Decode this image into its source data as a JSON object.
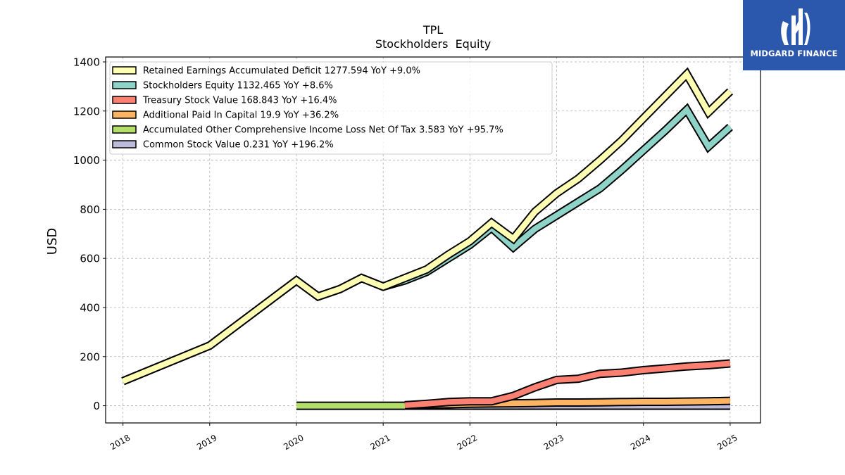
{
  "chart_data": {
    "type": "line",
    "title": "TPL",
    "subtitle": "Stockholders  Equity",
    "ylabel": "USD",
    "xlabel": "",
    "xlim": [
      2017.8,
      2025.35
    ],
    "ylim": [
      -70,
      1420
    ],
    "x_ticks": [
      2018,
      2019,
      2020,
      2021,
      2022,
      2023,
      2024,
      2025
    ],
    "x_tick_labels": [
      "2018",
      "2019",
      "2020",
      "2021",
      "2022",
      "2023",
      "2024",
      "2025"
    ],
    "y_ticks": [
      0,
      200,
      400,
      600,
      800,
      1000,
      1200,
      1400
    ],
    "y_tick_labels": [
      "0",
      "200",
      "400",
      "600",
      "800",
      "1000",
      "1200",
      "1400"
    ],
    "grid": true,
    "legend_position": "top-left",
    "series": [
      {
        "name": "Retained Earnings Accumulated Deficit  1277.594 YoY +9.0%",
        "color": "#ffffb3",
        "x": [
          2018.0,
          2019.0,
          2020.0,
          2020.25,
          2020.5,
          2020.75,
          2021.0,
          2021.25,
          2021.5,
          2021.75,
          2022.0,
          2022.25,
          2022.5,
          2022.75,
          2023.0,
          2023.25,
          2023.5,
          2023.75,
          2024.0,
          2024.25,
          2024.5,
          2024.75,
          2025.0
        ],
        "y": [
          100,
          245,
          510,
          445,
          475,
          520,
          485,
          520,
          555,
          615,
          670,
          745,
          680,
          790,
          865,
          925,
          1000,
          1080,
          1170,
          1260,
          1350,
          1195,
          1280
        ]
      },
      {
        "name": "Stockholders Equity  1132.465 YoY +8.6%",
        "color": "#8dd3c7",
        "x": [
          2018.0,
          2019.0,
          2020.0,
          2020.25,
          2020.5,
          2020.75,
          2021.0,
          2021.25,
          2021.5,
          2021.75,
          2022.0,
          2022.25,
          2022.5,
          2022.75,
          2023.0,
          2023.25,
          2023.5,
          2023.75,
          2024.0,
          2024.25,
          2024.5,
          2024.75,
          2025.0
        ],
        "y": [
          100,
          245,
          510,
          445,
          475,
          520,
          485,
          510,
          545,
          600,
          655,
          725,
          645,
          720,
          775,
          830,
          885,
          960,
          1040,
          1120,
          1205,
          1055,
          1135
        ]
      },
      {
        "name": "Treasury Stock Value  168.843 YoY +16.4%",
        "color": "#fb8072",
        "x": [
          2021.25,
          2021.5,
          2021.75,
          2022.0,
          2022.25,
          2022.5,
          2022.75,
          2023.0,
          2023.25,
          2023.5,
          2023.75,
          2024.0,
          2024.25,
          2024.5,
          2024.75,
          2025.0
        ],
        "y": [
          2,
          8,
          15,
          18,
          18,
          40,
          75,
          105,
          110,
          130,
          135,
          145,
          152,
          160,
          165,
          172
        ]
      },
      {
        "name": "Additional Paid In Capital  19.9 YoY +36.2%",
        "color": "#fdb462",
        "x": [
          2021.25,
          2021.5,
          2021.75,
          2022.0,
          2022.25,
          2022.5,
          2022.75,
          2023.0,
          2023.25,
          2023.5,
          2023.75,
          2024.0,
          2024.25,
          2024.5,
          2024.75,
          2025.0
        ],
        "y": [
          2,
          4,
          6,
          8,
          9,
          10,
          11,
          13,
          13,
          14,
          15,
          16,
          16,
          17,
          18,
          20
        ]
      },
      {
        "name": "Accumulated Other Comprehensive Income Loss Net Of Tax  3.583 YoY +95.7%",
        "color": "#b3de69",
        "x": [
          2020.0,
          2020.25,
          2020.5,
          2020.75,
          2021.0,
          2021.25
        ],
        "y": [
          0,
          0,
          0,
          0,
          0,
          0
        ]
      },
      {
        "name": "Common Stock Value  0.231 YoY +196.2%",
        "color": "#bebada",
        "x": [
          2021.25,
          2021.5,
          2021.75,
          2022.0,
          2022.25,
          2022.5,
          2022.75,
          2023.0,
          2023.25,
          2023.5,
          2023.75,
          2024.0,
          2024.25,
          2024.5,
          2024.75,
          2025.0
        ],
        "y": [
          0.1,
          0.1,
          0.1,
          0.1,
          0.1,
          0.1,
          0.1,
          0.1,
          0.1,
          0.1,
          0.1,
          0.1,
          0.1,
          0.2,
          0.2,
          0.2
        ]
      }
    ]
  },
  "logo": {
    "text": "MIDGARD FINANCE",
    "background": "#2b58ad"
  }
}
